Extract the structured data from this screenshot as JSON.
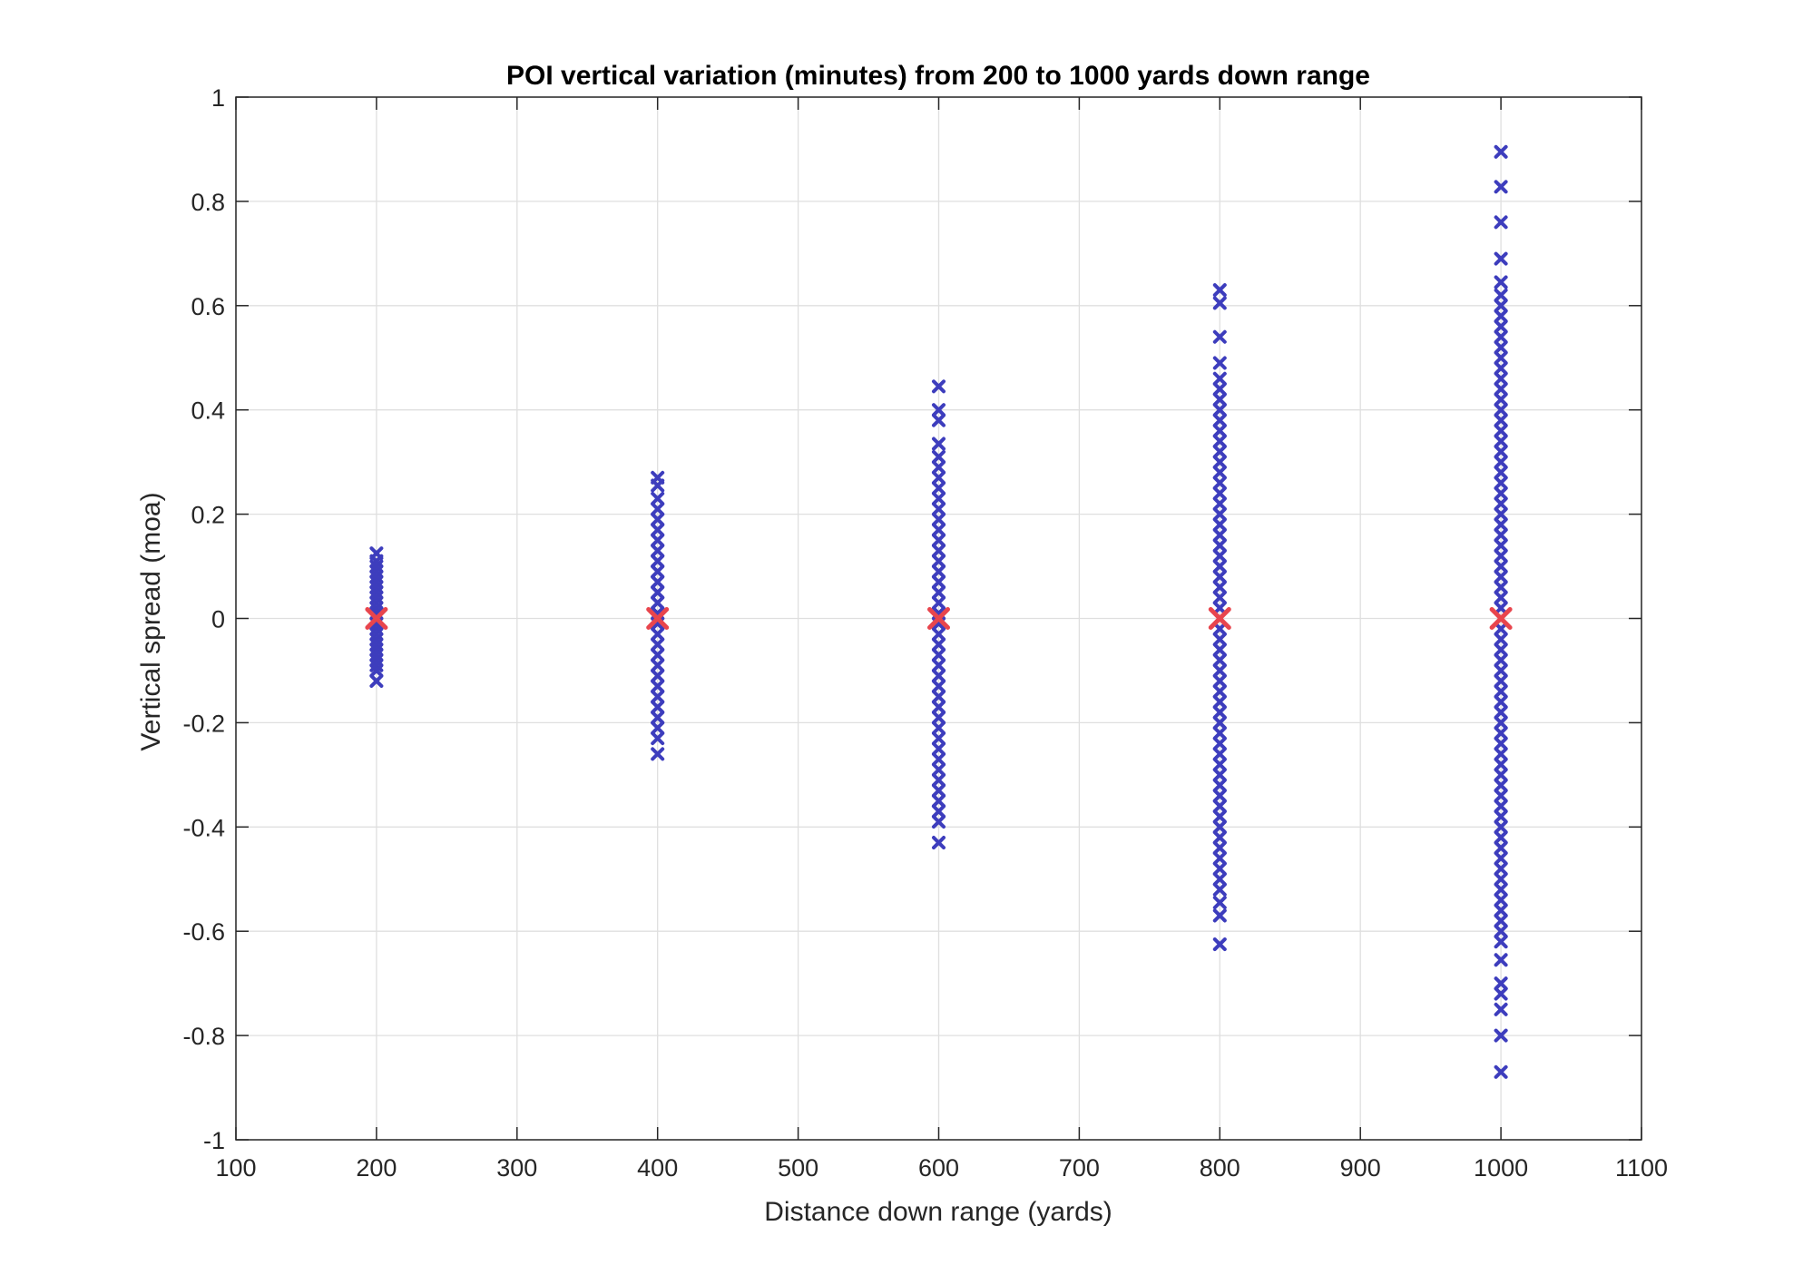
{
  "chart_data": {
    "type": "scatter",
    "title": "POI vertical variation (minutes) from 200 to 1000 yards down range",
    "xlabel": "Distance down range (yards)",
    "ylabel": "Vertical spread (moa)",
    "xlim": [
      100,
      1100
    ],
    "ylim": [
      -1,
      1
    ],
    "xticks": [
      100,
      200,
      300,
      400,
      500,
      600,
      700,
      800,
      900,
      1000,
      1100
    ],
    "yticks": [
      1,
      0.8,
      0.6,
      0.4,
      0.2,
      0,
      -0.2,
      -0.4,
      -0.6,
      -0.8,
      -1
    ],
    "xtick_labels": [
      "100",
      "200",
      "300",
      "400",
      "500",
      "600",
      "700",
      "800",
      "900",
      "1000",
      "1100"
    ],
    "ytick_labels": [
      "1",
      "0.8",
      "0.6",
      "0.4",
      "0.2",
      "0",
      "-0.2",
      "-0.4",
      "-0.6",
      "-0.8",
      "-1"
    ],
    "grid": true,
    "legend": "none",
    "series": [
      {
        "marker": "x",
        "color": "#3d3dbd",
        "groups": [
          {
            "x": 200,
            "points": [
              0.125,
              0.11,
              0.1,
              0.09,
              0.08,
              0.07,
              0.06,
              0.05,
              0.04,
              0.03,
              0.02,
              0.01,
              0.0,
              -0.01,
              -0.02,
              -0.03,
              -0.04,
              -0.05,
              -0.06,
              -0.07,
              -0.08,
              -0.09,
              -0.1,
              -0.12
            ]
          },
          {
            "x": 400,
            "points": [
              0.27,
              0.255,
              0.23,
              0.21,
              0.19,
              0.17,
              0.15,
              0.13,
              0.11,
              0.09,
              0.07,
              0.05,
              0.03,
              0.01,
              -0.01,
              -0.03,
              -0.05,
              -0.07,
              -0.09,
              -0.11,
              -0.13,
              -0.15,
              -0.17,
              -0.19,
              -0.21,
              -0.23,
              -0.26
            ]
          },
          {
            "x": 600,
            "points": [
              0.445,
              0.4,
              0.38,
              0.335,
              0.31,
              0.29,
              0.27,
              0.25,
              0.23,
              0.21,
              0.19,
              0.17,
              0.15,
              0.13,
              0.11,
              0.09,
              0.07,
              0.05,
              0.03,
              0.01,
              -0.01,
              -0.03,
              -0.05,
              -0.07,
              -0.09,
              -0.11,
              -0.13,
              -0.15,
              -0.17,
              -0.19,
              -0.21,
              -0.23,
              -0.25,
              -0.27,
              -0.29,
              -0.31,
              -0.33,
              -0.35,
              -0.37,
              -0.39,
              -0.43
            ]
          },
          {
            "x": 800,
            "points": [
              0.63,
              0.605,
              0.54,
              0.49,
              0.46,
              0.44,
              0.42,
              0.4,
              0.38,
              0.36,
              0.34,
              0.32,
              0.3,
              0.28,
              0.26,
              0.24,
              0.22,
              0.2,
              0.18,
              0.16,
              0.14,
              0.12,
              0.1,
              0.08,
              0.06,
              0.04,
              0.02,
              0.0,
              -0.02,
              -0.04,
              -0.06,
              -0.08,
              -0.1,
              -0.12,
              -0.14,
              -0.16,
              -0.18,
              -0.2,
              -0.22,
              -0.24,
              -0.26,
              -0.28,
              -0.3,
              -0.32,
              -0.34,
              -0.36,
              -0.38,
              -0.4,
              -0.42,
              -0.44,
              -0.46,
              -0.48,
              -0.5,
              -0.52,
              -0.545,
              -0.57,
              -0.625
            ]
          },
          {
            "x": 1000,
            "points": [
              0.895,
              0.828,
              0.76,
              0.69,
              0.645,
              0.62,
              0.6,
              0.58,
              0.56,
              0.54,
              0.52,
              0.5,
              0.48,
              0.46,
              0.44,
              0.42,
              0.4,
              0.38,
              0.36,
              0.34,
              0.32,
              0.3,
              0.28,
              0.26,
              0.24,
              0.22,
              0.2,
              0.18,
              0.16,
              0.14,
              0.12,
              0.1,
              0.08,
              0.06,
              0.04,
              0.02,
              0.0,
              -0.02,
              -0.04,
              -0.06,
              -0.08,
              -0.1,
              -0.12,
              -0.14,
              -0.16,
              -0.18,
              -0.2,
              -0.22,
              -0.24,
              -0.26,
              -0.28,
              -0.3,
              -0.32,
              -0.34,
              -0.36,
              -0.38,
              -0.4,
              -0.42,
              -0.44,
              -0.46,
              -0.48,
              -0.5,
              -0.52,
              -0.54,
              -0.56,
              -0.58,
              -0.6,
              -0.62,
              -0.655,
              -0.7,
              -0.72,
              -0.75,
              -0.8,
              -0.87
            ]
          }
        ]
      },
      {
        "marker": "x",
        "color": "#e8454d",
        "x": [
          200,
          400,
          600,
          800,
          1000
        ],
        "values": [
          0,
          0,
          0,
          0,
          0
        ]
      }
    ]
  }
}
